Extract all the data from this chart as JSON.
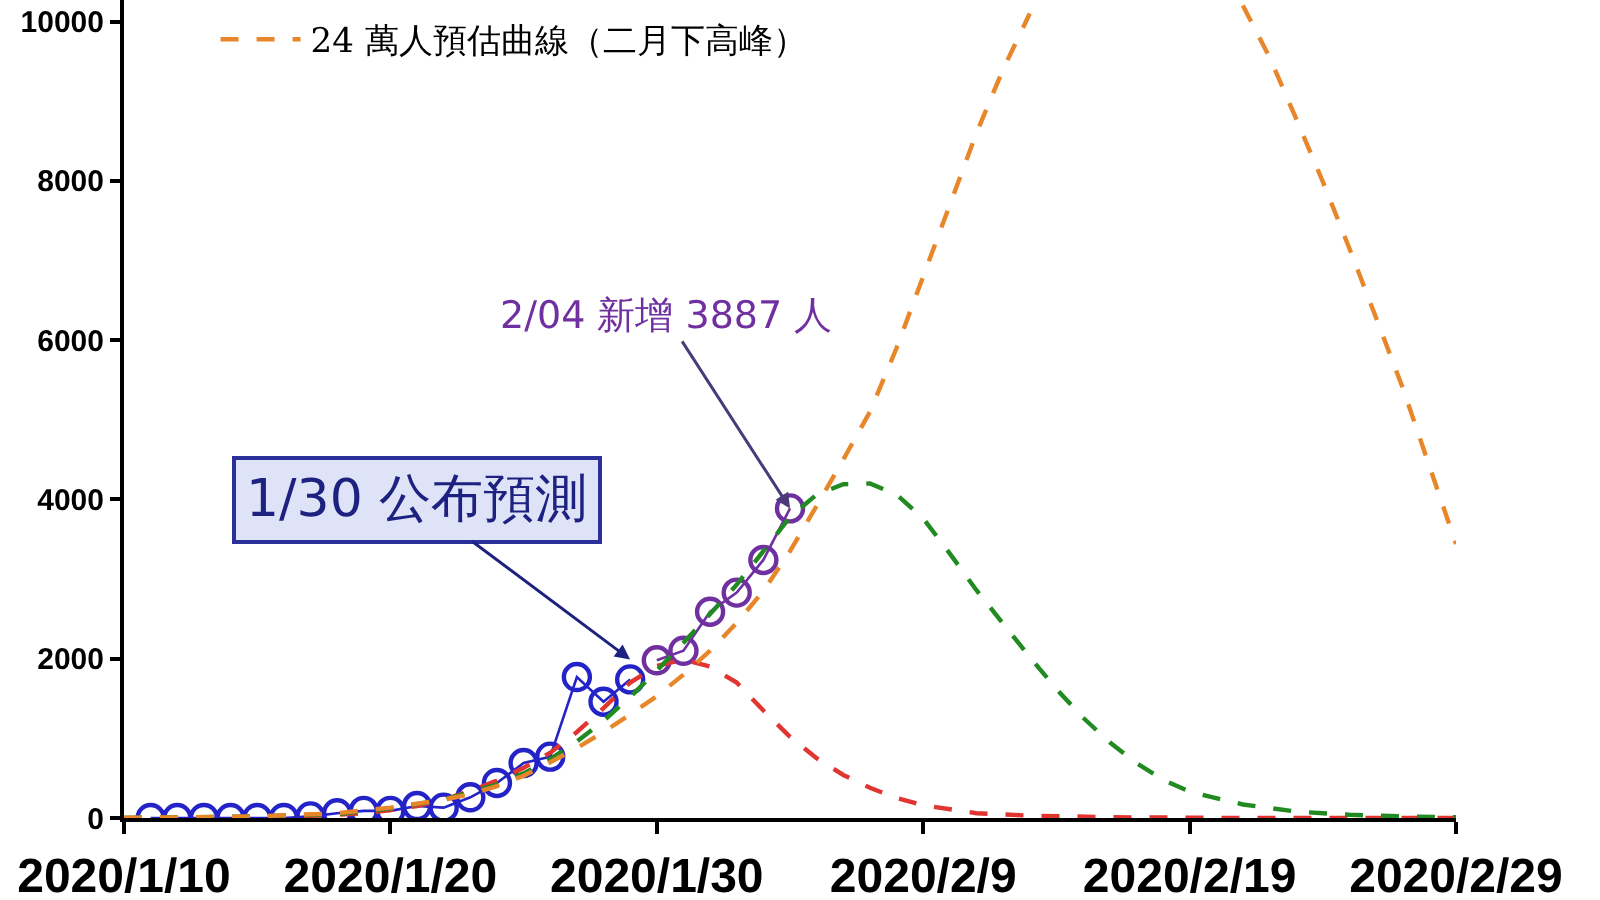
{
  "chart_data": {
    "type": "line",
    "legend": "top left",
    "xlim": [
      "2020-01-10",
      "2020-02-29"
    ],
    "xticks": [
      {
        "value": "2020-01-10",
        "label": "2020/1/10"
      },
      {
        "value": "2020-01-20",
        "label": "2020/1/20"
      },
      {
        "value": "2020-01-30",
        "label": "2020/1/30"
      },
      {
        "value": "2020-02-09",
        "label": "2020/2/9"
      },
      {
        "value": "2020-02-19",
        "label": "2020/2/19"
      },
      {
        "value": "2020-02-29",
        "label": "2020/2/29"
      }
    ],
    "ylim": [
      0,
      10270
    ],
    "yticks": [
      0,
      2000,
      4000,
      6000,
      8000,
      10000
    ],
    "annotations": [
      {
        "text": "1/30 公布預測",
        "x": "2020-01-29",
        "y": 1990
      },
      {
        "text": "2/04 新增 3887 人",
        "x": "2020-02-04",
        "y": 3887
      }
    ],
    "series": [
      {
        "color": "#2323c8",
        "marker": "circle",
        "line_style": "solid",
        "x": [
          "2020-01-11",
          "2020-01-12",
          "2020-01-13",
          "2020-01-14",
          "2020-01-15",
          "2020-01-16",
          "2020-01-17",
          "2020-01-18",
          "2020-01-19",
          "2020-01-20",
          "2020-01-21",
          "2020-01-22",
          "2020-01-23",
          "2020-01-24",
          "2020-01-25",
          "2020-01-26",
          "2020-01-27",
          "2020-01-28",
          "2020-01-29"
        ],
        "values": [
          0,
          0,
          0,
          0,
          0,
          0,
          20,
          60,
          90,
          90,
          150,
          130,
          260,
          440,
          690,
          770,
          1770,
          1460,
          1740
        ]
      },
      {
        "color": "#7030a0",
        "marker": "circle",
        "line_style": "solid",
        "x": [
          "2020-01-30",
          "2020-01-31",
          "2020-02-01",
          "2020-02-02",
          "2020-02-03",
          "2020-02-04"
        ],
        "values": [
          1980,
          2100,
          2590,
          2830,
          3240,
          3887
        ]
      },
      {
        "color": "#e03530",
        "marker": "none",
        "line_style": "dashed",
        "x": [
          "2020-01-10",
          "2020-01-14",
          "2020-01-16",
          "2020-01-18",
          "2020-01-19",
          "2020-01-20",
          "2020-01-21",
          "2020-01-22",
          "2020-01-23",
          "2020-01-24",
          "2020-01-25",
          "2020-01-26",
          "2020-01-27",
          "2020-01-28",
          "2020-01-29",
          "2020-01-30",
          "2020-01-31",
          "2020-02-01",
          "2020-02-02",
          "2020-02-03",
          "2020-02-04",
          "2020-02-05",
          "2020-02-06",
          "2020-02-07",
          "2020-02-08",
          "2020-02-09",
          "2020-02-11",
          "2020-02-13",
          "2020-02-16",
          "2020-02-21",
          "2020-02-29"
        ],
        "values": [
          0,
          0,
          10,
          40,
          60,
          100,
          150,
          230,
          340,
          470,
          630,
          820,
          1080,
          1380,
          1700,
          1910,
          1990,
          1900,
          1700,
          1350,
          1020,
          750,
          540,
          380,
          250,
          160,
          60,
          30,
          10,
          0,
          0
        ]
      },
      {
        "color": "#218a21",
        "marker": "none",
        "line_style": "dashed",
        "x": [
          "2020-01-10",
          "2020-01-15",
          "2020-01-18",
          "2020-01-20",
          "2020-01-22",
          "2020-01-24",
          "2020-01-25",
          "2020-01-26",
          "2020-01-27",
          "2020-01-28",
          "2020-01-29",
          "2020-01-30",
          "2020-01-31",
          "2020-02-01",
          "2020-02-02",
          "2020-02-03",
          "2020-02-04",
          "2020-02-05",
          "2020-02-06",
          "2020-02-07",
          "2020-02-08",
          "2020-02-09",
          "2020-02-10",
          "2020-02-11",
          "2020-02-12",
          "2020-02-13",
          "2020-02-14",
          "2020-02-15",
          "2020-02-16",
          "2020-02-17",
          "2020-02-18",
          "2020-02-19",
          "2020-02-21",
          "2020-02-23",
          "2020-02-25",
          "2020-02-27",
          "2020-02-29"
        ],
        "values": [
          0,
          20,
          50,
          120,
          230,
          420,
          560,
          740,
          960,
          1220,
          1520,
          1850,
          2200,
          2560,
          2930,
          3350,
          3780,
          4060,
          4190,
          4200,
          4060,
          3760,
          3320,
          2860,
          2440,
          2020,
          1620,
          1260,
          950,
          690,
          480,
          330,
          170,
          80,
          40,
          20,
          10
        ]
      },
      {
        "name": "24 萬人預估曲線（二月下高峰）",
        "color": "#e8862a",
        "marker": "none",
        "line_style": "dashed",
        "x": [
          "2020-01-10",
          "2020-01-15",
          "2020-01-18",
          "2020-01-20",
          "2020-01-22",
          "2020-01-23",
          "2020-01-24",
          "2020-01-25",
          "2020-01-26",
          "2020-01-27",
          "2020-01-28",
          "2020-01-29",
          "2020-01-30",
          "2020-01-31",
          "2020-02-01",
          "2020-02-02",
          "2020-02-03",
          "2020-02-04",
          "2020-02-05",
          "2020-02-06",
          "2020-02-07",
          "2020-02-08",
          "2020-02-09",
          "2020-02-10",
          "2020-02-11",
          "2020-02-12",
          "2020-02-13",
          "2020-02-17",
          "2020-02-21",
          "2020-02-22",
          "2020-02-23",
          "2020-02-24",
          "2020-02-25",
          "2020-02-26",
          "2020-02-27",
          "2020-02-28",
          "2020-02-29"
        ],
        "values": [
          0,
          20,
          60,
          130,
          230,
          300,
          400,
          530,
          700,
          880,
          1080,
          1300,
          1530,
          1800,
          2100,
          2450,
          2850,
          3350,
          3920,
          4500,
          5100,
          5900,
          6800,
          7700,
          8600,
          9400,
          10100,
          null,
          10200,
          9550,
          8780,
          7990,
          7150,
          6280,
          5400,
          4420,
          3440
        ]
      }
    ]
  }
}
